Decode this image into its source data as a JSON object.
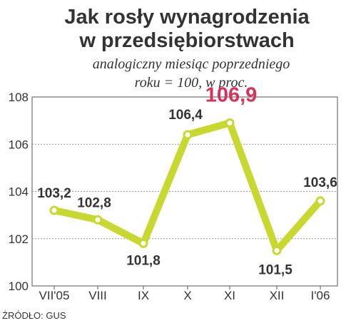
{
  "header": {
    "title_line1": "Jak rosły wynagrodzenia",
    "title_line2": "w przedsiębiorstwach",
    "subtitle_line1": "analogiczny miesiąc poprzedniego",
    "subtitle_line2": "roku = 100, w proc."
  },
  "source": "ŹRÓDŁO: GUS",
  "colors": {
    "line": "#c7d930",
    "highlight": "#d7325c",
    "text": "#333333",
    "grid": "#999999",
    "axis": "#555555",
    "marker_fill": "#ffffff"
  },
  "chart_data": {
    "type": "line",
    "title": "Jak rosły wynagrodzenia w przedsiębiorstwach",
    "subtitle": "analogiczny miesiąc poprzedniego roku = 100, w proc.",
    "xlabel": "",
    "ylabel": "",
    "categories": [
      "VII'05",
      "VIII",
      "IX",
      "X",
      "XI",
      "XII",
      "I'06"
    ],
    "series": [
      {
        "values": [
          103.2,
          102.8,
          101.8,
          106.4,
          106.9,
          101.5,
          103.6
        ]
      }
    ],
    "data_labels": [
      "103,2",
      "102,8",
      "101,8",
      "106,4",
      "106,9",
      "101,5",
      "103,6"
    ],
    "highlight_index": 4,
    "ylim": [
      100,
      108
    ],
    "y_ticks": [
      100,
      102,
      104,
      106,
      108
    ],
    "y_tick_labels": [
      "100",
      "102",
      "104",
      "106",
      "108"
    ],
    "grid": true,
    "legend": "none"
  }
}
